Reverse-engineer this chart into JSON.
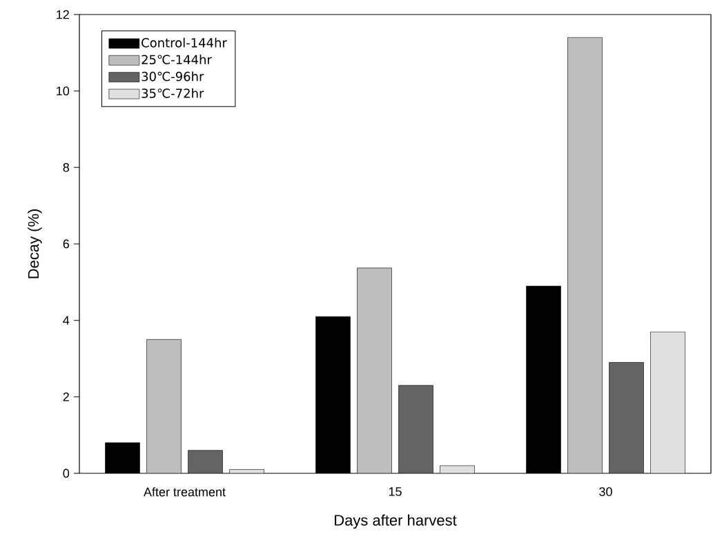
{
  "chart_data": {
    "type": "bar",
    "xlabel": "Days after harvest",
    "ylabel": "Decay (%)",
    "categories": [
      "After treatment",
      "15",
      "30"
    ],
    "series": [
      {
        "name": "Control-144hr",
        "color": "#000000",
        "values": [
          0.8,
          4.1,
          4.9
        ]
      },
      {
        "name": "25℃-144hr",
        "color": "#bebebe",
        "values": [
          3.5,
          5.37,
          11.4
        ]
      },
      {
        "name": "30℃-96hr",
        "color": "#646464",
        "values": [
          0.6,
          2.3,
          2.9
        ]
      },
      {
        "name": "35℃-72hr",
        "color": "#e0e0e0",
        "values": [
          0.1,
          0.2,
          3.7
        ]
      }
    ],
    "ylim": [
      0,
      12
    ],
    "yticks": [
      0,
      2,
      4,
      6,
      8,
      10,
      12
    ],
    "legend": "top left"
  }
}
